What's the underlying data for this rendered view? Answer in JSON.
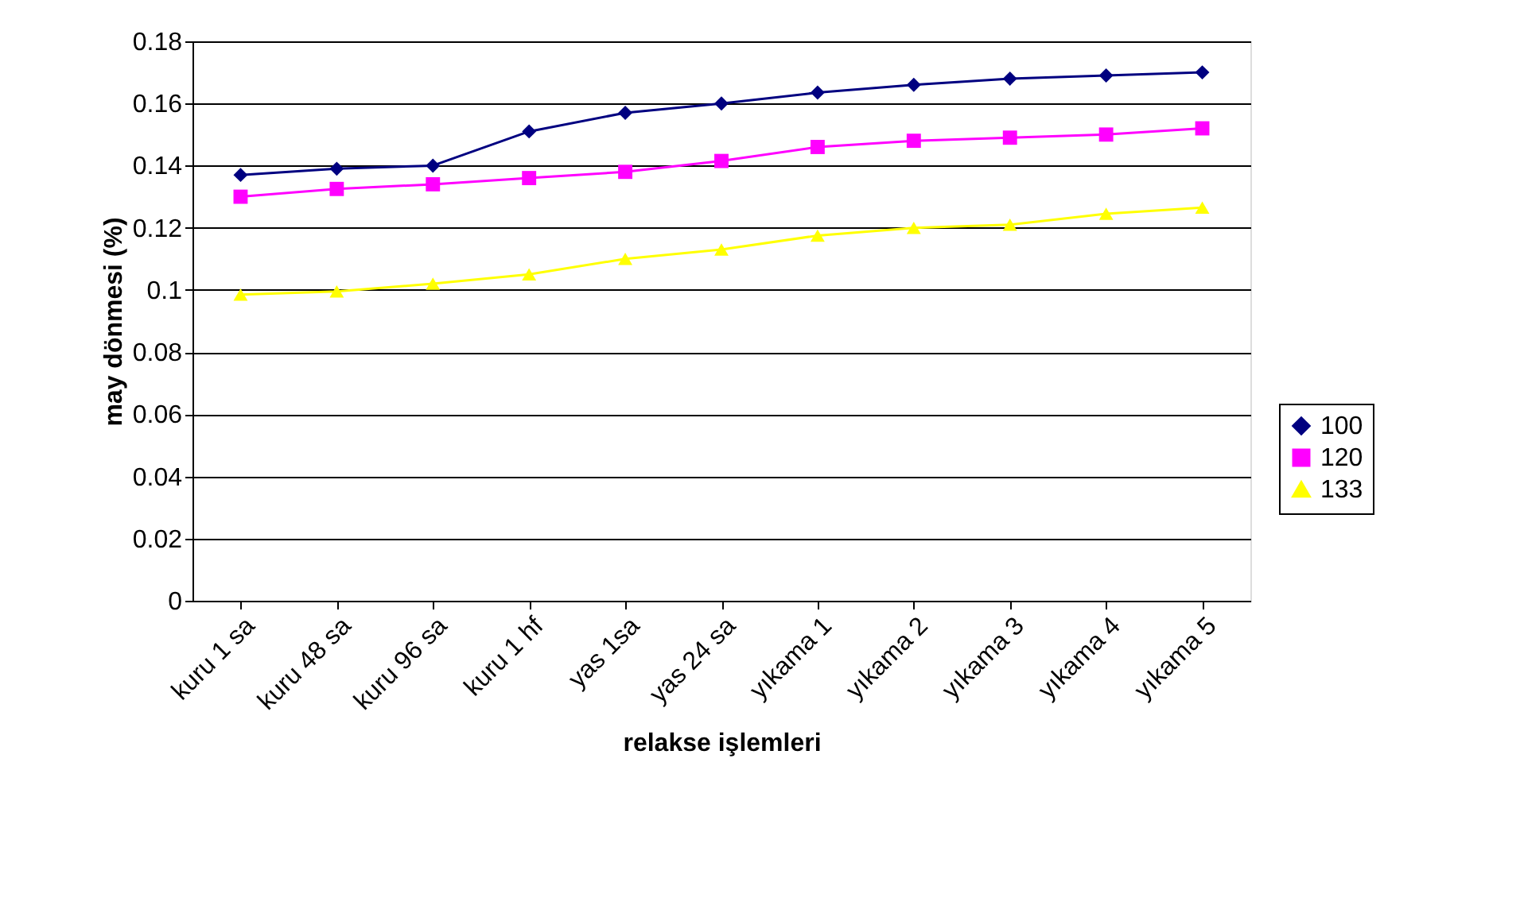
{
  "chart_data": {
    "type": "line",
    "xlabel": "relakse işlemleri",
    "ylabel": "may dönmesi (%)",
    "categories": [
      "kuru 1 sa",
      "kuru 48 sa",
      "kuru 96 sa",
      "kuru 1 hf",
      "yas 1sa",
      "yas 24 sa",
      "yıkama 1",
      "yıkama 2",
      "yıkama 3",
      "yıkama 4",
      "yıkama 5"
    ],
    "series": [
      {
        "name": "100",
        "color": "#000080",
        "marker": "diamond",
        "values": [
          0.137,
          0.139,
          0.14,
          0.151,
          0.157,
          0.16,
          0.1635,
          0.166,
          0.168,
          0.169,
          0.17
        ]
      },
      {
        "name": "120",
        "color": "#ff00ff",
        "marker": "square",
        "values": [
          0.13,
          0.1325,
          0.134,
          0.136,
          0.138,
          0.1415,
          0.146,
          0.148,
          0.149,
          0.15,
          0.152
        ]
      },
      {
        "name": "133",
        "color": "#ffff00",
        "marker": "triangle",
        "values": [
          0.0985,
          0.0995,
          0.102,
          0.105,
          0.11,
          0.113,
          0.1175,
          0.12,
          0.121,
          0.1245,
          0.1265
        ]
      }
    ],
    "ylim": [
      0,
      0.18
    ],
    "yticks": [
      0,
      0.02,
      0.04,
      0.06,
      0.08,
      0.1,
      0.12,
      0.14,
      0.16,
      0.18
    ],
    "grid": "y",
    "legend": "right",
    "line_style": "solid"
  }
}
